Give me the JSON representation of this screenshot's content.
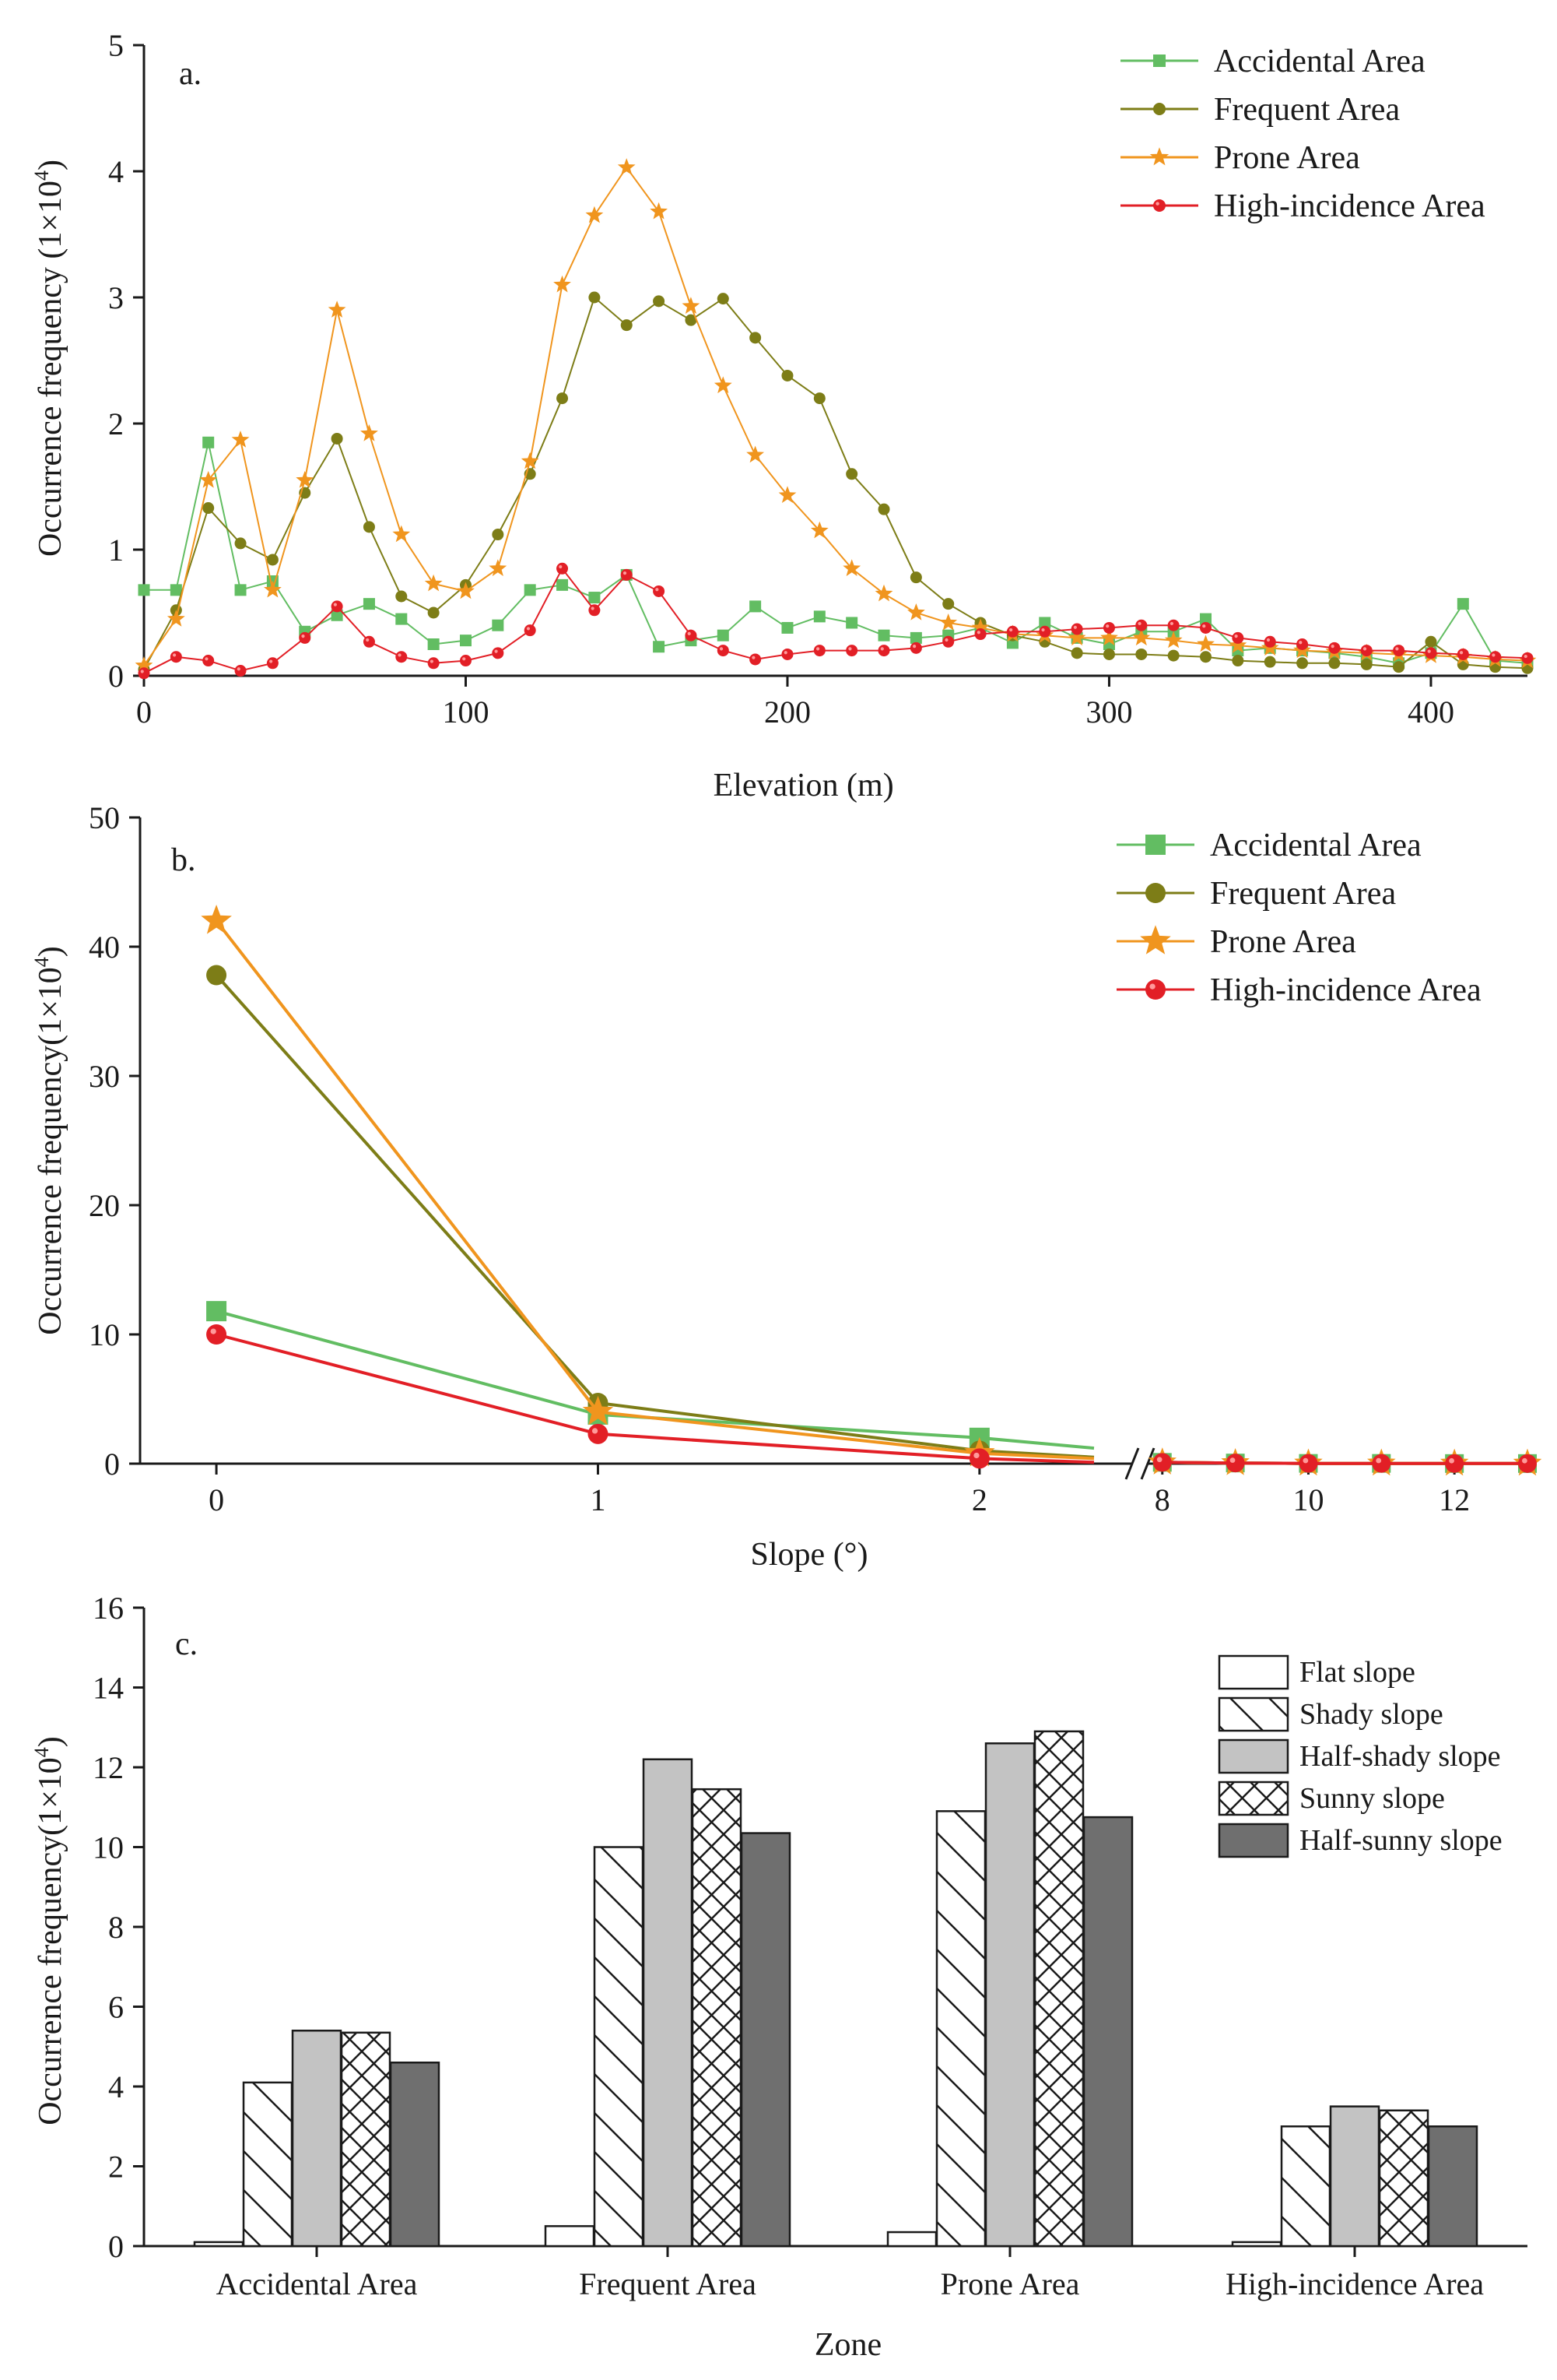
{
  "colors": {
    "accidental": "#62bd62",
    "frequent": "#7d7d17",
    "prone": "#f0951e",
    "high": "#e21f26",
    "flat": "#ffffff",
    "half_shady": "#c3c3c3",
    "half_sunny": "#6f6f6f"
  },
  "chart_data": [
    {
      "id": "a",
      "panel_label": "a.",
      "type": "line",
      "xlabel": "Elevation (m)",
      "ylabel": "Occurrence frequency (1×10",
      "ylabel_sup": "4",
      "ylabel_close": ")",
      "xlim": [
        0,
        430
      ],
      "ylim": [
        0,
        5
      ],
      "xticks": [
        0,
        100,
        200,
        300,
        400
      ],
      "yticks": [
        0,
        1,
        2,
        3,
        4,
        5
      ],
      "x": [
        0,
        10,
        20,
        30,
        40,
        50,
        60,
        70,
        80,
        90,
        100,
        110,
        120,
        130,
        140,
        150,
        160,
        170,
        180,
        190,
        200,
        210,
        220,
        230,
        240,
        250,
        260,
        270,
        280,
        290,
        300,
        310,
        320,
        330,
        340,
        350,
        360,
        370,
        380,
        390,
        400,
        410,
        420,
        430
      ],
      "series": [
        {
          "key": "accidental",
          "name": "Accidental Area",
          "marker": "square",
          "values": [
            0.68,
            0.68,
            1.85,
            0.68,
            0.75,
            0.35,
            0.48,
            0.57,
            0.45,
            0.25,
            0.28,
            0.4,
            0.68,
            0.72,
            0.62,
            0.8,
            0.23,
            0.28,
            0.32,
            0.55,
            0.38,
            0.47,
            0.42,
            0.32,
            0.3,
            0.32,
            0.38,
            0.26,
            0.42,
            0.3,
            0.25,
            0.35,
            0.35,
            0.45,
            0.2,
            0.22,
            0.2,
            0.18,
            0.15,
            0.1,
            0.18,
            0.57,
            0.12,
            0.1
          ]
        },
        {
          "key": "frequent",
          "name": "Frequent Area",
          "marker": "circle",
          "values": [
            0.05,
            0.52,
            1.33,
            1.05,
            0.92,
            1.45,
            1.88,
            1.18,
            0.63,
            0.5,
            0.72,
            1.12,
            1.6,
            2.2,
            3.0,
            2.78,
            2.97,
            2.82,
            2.99,
            2.68,
            2.38,
            2.2,
            1.6,
            1.32,
            0.78,
            0.57,
            0.42,
            0.32,
            0.27,
            0.18,
            0.17,
            0.17,
            0.16,
            0.15,
            0.12,
            0.11,
            0.1,
            0.1,
            0.09,
            0.07,
            0.27,
            0.09,
            0.07,
            0.06
          ]
        },
        {
          "key": "prone",
          "name": "Prone Area",
          "marker": "star",
          "values": [
            0.08,
            0.45,
            1.55,
            1.87,
            0.68,
            1.55,
            2.9,
            1.92,
            1.12,
            0.73,
            0.67,
            0.85,
            1.7,
            3.1,
            3.65,
            4.03,
            3.68,
            2.93,
            2.3,
            1.75,
            1.43,
            1.15,
            0.85,
            0.65,
            0.5,
            0.42,
            0.38,
            0.33,
            0.32,
            0.3,
            0.3,
            0.3,
            0.28,
            0.25,
            0.24,
            0.22,
            0.2,
            0.19,
            0.18,
            0.17,
            0.16,
            0.15,
            0.13,
            0.12
          ]
        },
        {
          "key": "high",
          "name": "High-incidence Area",
          "marker": "circle-red",
          "values": [
            0.02,
            0.15,
            0.12,
            0.04,
            0.1,
            0.3,
            0.55,
            0.27,
            0.15,
            0.1,
            0.12,
            0.18,
            0.36,
            0.85,
            0.52,
            0.8,
            0.67,
            0.32,
            0.2,
            0.13,
            0.17,
            0.2,
            0.2,
            0.2,
            0.22,
            0.27,
            0.33,
            0.35,
            0.35,
            0.37,
            0.38,
            0.4,
            0.4,
            0.38,
            0.3,
            0.27,
            0.25,
            0.22,
            0.2,
            0.2,
            0.18,
            0.17,
            0.15,
            0.14
          ]
        }
      ]
    },
    {
      "id": "b",
      "panel_label": "b.",
      "type": "line",
      "xlabel": "Slope (°)",
      "ylabel": "Occurrence frequency(1×10",
      "ylabel_sup": "4",
      "ylabel_close": ")",
      "ylim": [
        0,
        50
      ],
      "yticks": [
        0,
        10,
        20,
        30,
        40,
        50
      ],
      "broken_axis": true,
      "segment1": {
        "xlim": [
          -0.2,
          2.4
        ],
        "xticks": [
          0,
          1,
          2
        ]
      },
      "segment2": {
        "xlim": [
          7.8,
          13
        ],
        "xticks": [
          8,
          10,
          12
        ]
      },
      "series": [
        {
          "key": "accidental",
          "name": "Accidental Area",
          "marker": "square",
          "seg1_x": [
            0,
            1,
            2,
            2.3
          ],
          "seg1_values": [
            11.8,
            3.8,
            2.0,
            1.2
          ],
          "seg2_x": [
            8,
            9,
            10,
            11,
            12,
            13
          ],
          "seg2_values": [
            0.1,
            0.05,
            0.02,
            0.02,
            0.01,
            0.01
          ]
        },
        {
          "key": "frequent",
          "name": "Frequent Area",
          "marker": "circle",
          "seg1_x": [
            0,
            1,
            2,
            2.3
          ],
          "seg1_values": [
            37.8,
            4.7,
            1.0,
            0.5
          ],
          "seg2_x": [
            8,
            9,
            10,
            11,
            12,
            13
          ],
          "seg2_values": [
            0.1,
            0.05,
            0.02,
            0.02,
            0.01,
            0.01
          ]
        },
        {
          "key": "prone",
          "name": "Prone Area",
          "marker": "star",
          "seg1_x": [
            0,
            1,
            2,
            2.3
          ],
          "seg1_values": [
            42.0,
            4.0,
            0.8,
            0.4
          ],
          "seg2_x": [
            8,
            9,
            10,
            11,
            12,
            13
          ],
          "seg2_values": [
            0.1,
            0.05,
            0.02,
            0.02,
            0.01,
            0.01
          ]
        },
        {
          "key": "high",
          "name": "High-incidence Area",
          "marker": "circle-red",
          "seg1_x": [
            0,
            1,
            2,
            2.3
          ],
          "seg1_values": [
            10.0,
            2.3,
            0.4,
            0.1
          ],
          "seg2_x": [
            8,
            9,
            10,
            11,
            12,
            13
          ],
          "seg2_values": [
            0.1,
            0.05,
            0.02,
            0.02,
            0.01,
            0.01
          ]
        }
      ]
    },
    {
      "id": "c",
      "panel_label": "c.",
      "type": "bar",
      "xlabel": "Zone",
      "ylabel": "Occurrence frequency(1×10",
      "ylabel_sup": "4",
      "ylabel_close": ")",
      "ylim": [
        0,
        16
      ],
      "yticks": [
        0,
        2,
        4,
        6,
        8,
        10,
        12,
        14,
        16
      ],
      "categories": [
        "Accidental Area",
        "Frequent Area",
        "Prone Area",
        "High-incidence Area"
      ],
      "series": [
        {
          "key": "flat",
          "name": "Flat slope",
          "pattern": "plain",
          "values": [
            0.1,
            0.5,
            0.35,
            0.1
          ]
        },
        {
          "key": "shady",
          "name": "Shady slope",
          "pattern": "diag",
          "values": [
            4.1,
            10.0,
            10.9,
            3.0
          ]
        },
        {
          "key": "half_shady",
          "name": "Half-shady slope",
          "pattern": "light",
          "values": [
            5.4,
            12.2,
            12.6,
            3.5
          ]
        },
        {
          "key": "sunny",
          "name": "Sunny slope",
          "pattern": "cross",
          "values": [
            5.35,
            11.45,
            12.9,
            3.4
          ]
        },
        {
          "key": "half_sunny",
          "name": "Half-sunny slope",
          "pattern": "dark",
          "values": [
            4.6,
            10.35,
            10.75,
            3.0
          ]
        }
      ]
    }
  ]
}
